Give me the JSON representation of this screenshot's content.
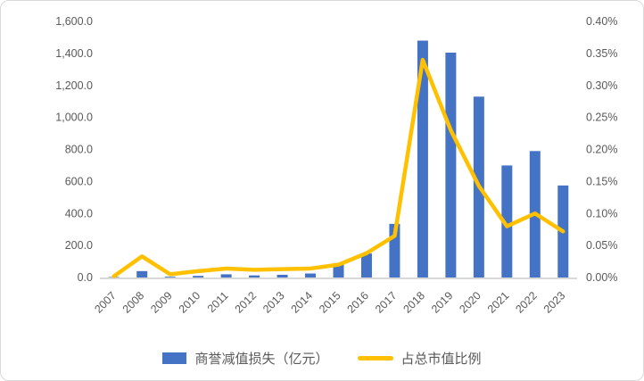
{
  "chart_data": {
    "type": "bar+line combo",
    "categories": [
      "2007",
      "2008",
      "2009",
      "2010",
      "2011",
      "2012",
      "2013",
      "2014",
      "2015",
      "2016",
      "2017",
      "2018",
      "2019",
      "2020",
      "2021",
      "2022",
      "2023"
    ],
    "series": [
      {
        "name": "商誉减值损失（亿元）",
        "type": "bar",
        "axis": "left",
        "color": "#4472C4",
        "values": [
          3,
          40,
          5,
          10,
          20,
          13,
          17,
          25,
          90,
          150,
          335,
          1480,
          1405,
          1130,
          700,
          790,
          575
        ]
      },
      {
        "name": "占总市值比例",
        "type": "line",
        "axis": "right",
        "color": "#FFC000",
        "unit": "%",
        "values": [
          0.002,
          0.033,
          0.005,
          0.01,
          0.014,
          0.012,
          0.013,
          0.014,
          0.02,
          0.038,
          0.065,
          0.34,
          0.23,
          0.143,
          0.08,
          0.1,
          0.072
        ]
      }
    ],
    "left_axis": {
      "min": 0,
      "max": 1600,
      "step": 200,
      "tick_labels": [
        "0.0",
        "200.0",
        "400.0",
        "600.0",
        "800.0",
        "1,000.0",
        "1,200.0",
        "1,400.0",
        "1,600.0"
      ]
    },
    "right_axis": {
      "min": 0,
      "max": 0.4,
      "step": 0.05,
      "tick_labels": [
        "0.00%",
        "0.05%",
        "0.10%",
        "0.15%",
        "0.20%",
        "0.25%",
        "0.30%",
        "0.35%",
        "0.40%"
      ]
    },
    "grid": false,
    "legend_position": "bottom",
    "x_label_rotation_deg": -45,
    "axis_line_color": "#d9d9d9",
    "tick_text_color": "#595959"
  }
}
